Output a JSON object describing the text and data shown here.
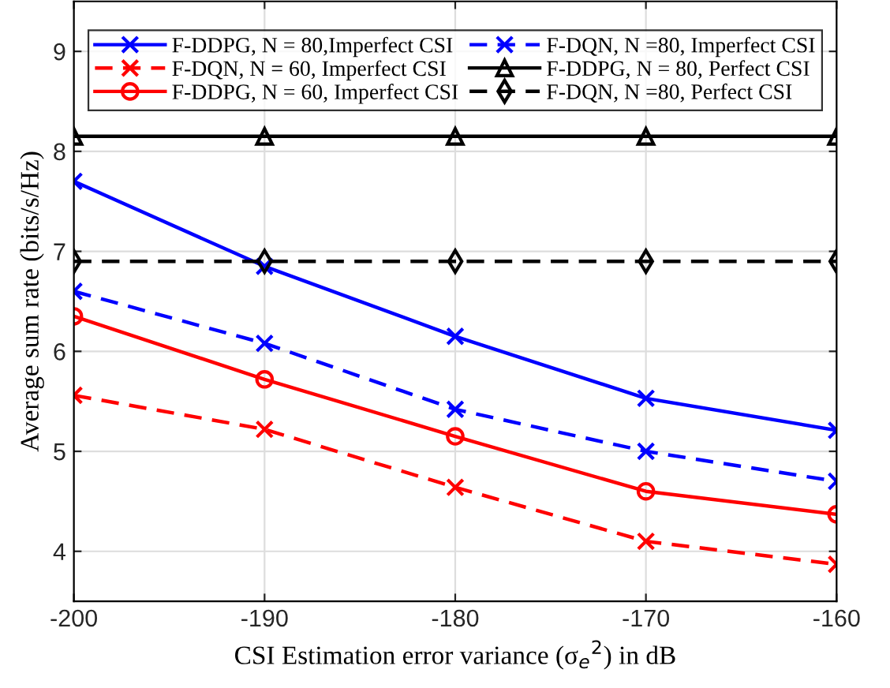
{
  "chart_data": {
    "type": "line",
    "xlabel": "CSI Estimation error variance (σ$_{e}$$^{2}$) in dB",
    "ylabel": "Average sum rate (bits/s/Hz)",
    "x": [
      -200,
      -190,
      -180,
      -170,
      -160
    ],
    "series": [
      {
        "name": "F-DDPG, N = 80,Imperfect CSI",
        "color": "#0000ff",
        "marker": "cross",
        "line_style": "solid",
        "values": [
          7.7,
          6.85,
          6.15,
          5.53,
          5.21
        ]
      },
      {
        "name": "F-DQN, N = 60, Imperfect CSI",
        "color": "#ff0000",
        "marker": "cross",
        "line_style": "dashed",
        "values": [
          5.56,
          5.22,
          4.64,
          4.1,
          3.87
        ]
      },
      {
        "name": "F-DDPG, N = 60, Imperfect CSI",
        "color": "#ff0000",
        "marker": "circle",
        "line_style": "solid",
        "values": [
          6.35,
          5.72,
          5.15,
          4.6,
          4.37
        ]
      },
      {
        "name": "F-DQN, N =80, Imperfect CSI",
        "color": "#0000ff",
        "marker": "cross",
        "line_style": "dashed",
        "values": [
          6.6,
          6.08,
          5.42,
          5.0,
          4.7
        ]
      },
      {
        "name": "F-DDPG, N = 80, Perfect CSI",
        "color": "#000000",
        "marker": "triangle",
        "line_style": "solid",
        "values": [
          8.15,
          8.15,
          8.15,
          8.15,
          8.15
        ]
      },
      {
        "name": "F-DQN, N =80, Perfect CSI",
        "color": "#000000",
        "marker": "diamond",
        "line_style": "dashed",
        "values": [
          6.9,
          6.9,
          6.9,
          6.9,
          6.9
        ]
      }
    ],
    "xlim": [
      -200,
      -160
    ],
    "xticks": [
      -200,
      -190,
      -180,
      -170,
      -160
    ],
    "ylim": [
      3.5,
      9.5
    ],
    "yticks": [
      4,
      5,
      6,
      7,
      8,
      9
    ],
    "grid": true,
    "legend": "top"
  }
}
